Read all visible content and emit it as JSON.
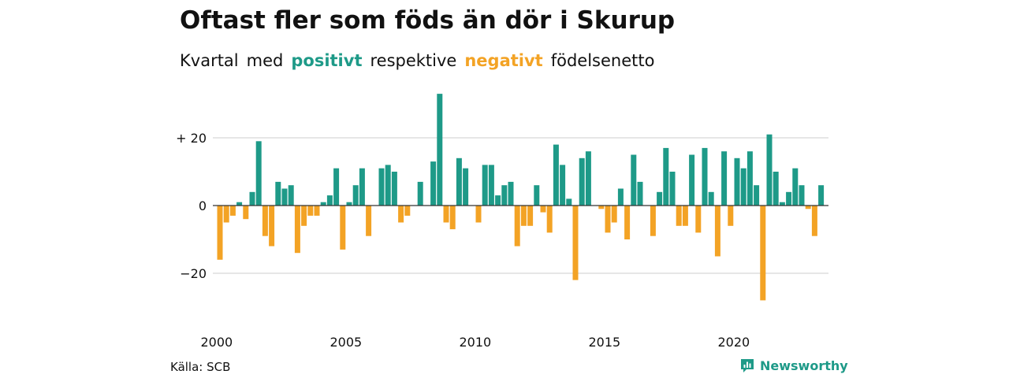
{
  "title": "Oftast fler som föds än dör i Skurup",
  "subtitle": {
    "part1": "Kvartal",
    "part2": "med",
    "positive_word": "positivt",
    "part3": "respektive",
    "negative_word": "negativt",
    "part4": "födelsenetto"
  },
  "source": "Källa: SCB",
  "brand": "Newsworthy",
  "colors": {
    "positive": "#1e9a88",
    "negative": "#f3a325",
    "brand": "#1e9a88",
    "grid": "#dddddd",
    "zero_line": "#333333"
  },
  "chart_data": {
    "type": "bar",
    "title": "Oftast fler som föds än dör i Skurup",
    "subtitle": "Kvartal med positivt respektive negativt födelsenetto",
    "xlabel": "",
    "ylabel": "",
    "x_start": "2000 Q1",
    "x_period": "quarter",
    "ylim": [
      -30,
      34
    ],
    "y_ticks": [
      {
        "value": 20,
        "label": "+ 20"
      },
      {
        "value": 0,
        "label": "0"
      },
      {
        "value": -20,
        "label": "−20"
      }
    ],
    "x_ticks": [
      {
        "index": 0,
        "label": "2000"
      },
      {
        "index": 20,
        "label": "2005"
      },
      {
        "index": 40,
        "label": "2010"
      },
      {
        "index": 60,
        "label": "2015"
      },
      {
        "index": 80,
        "label": "2020"
      }
    ],
    "grid": true,
    "legend": "none",
    "values": [
      -16,
      -5,
      -3,
      1,
      -4,
      4,
      19,
      -9,
      -12,
      7,
      5,
      6,
      -14,
      -6,
      -3,
      -3,
      1,
      3,
      11,
      -13,
      1,
      6,
      11,
      -9,
      0,
      11,
      12,
      10,
      -5,
      -3,
      0,
      7,
      0,
      13,
      33,
      -5,
      -7,
      14,
      11,
      0,
      -5,
      12,
      12,
      3,
      6,
      7,
      -12,
      -6,
      -6,
      6,
      -2,
      -8,
      18,
      12,
      2,
      -22,
      14,
      16,
      0,
      -1,
      -8,
      -5,
      5,
      -10,
      15,
      7,
      0,
      -9,
      4,
      17,
      10,
      -6,
      -6,
      15,
      -8,
      17,
      4,
      -15,
      16,
      -6,
      14,
      11,
      16,
      6,
      -28,
      21,
      10,
      1,
      4,
      11,
      6,
      -1,
      -9,
      6
    ]
  }
}
